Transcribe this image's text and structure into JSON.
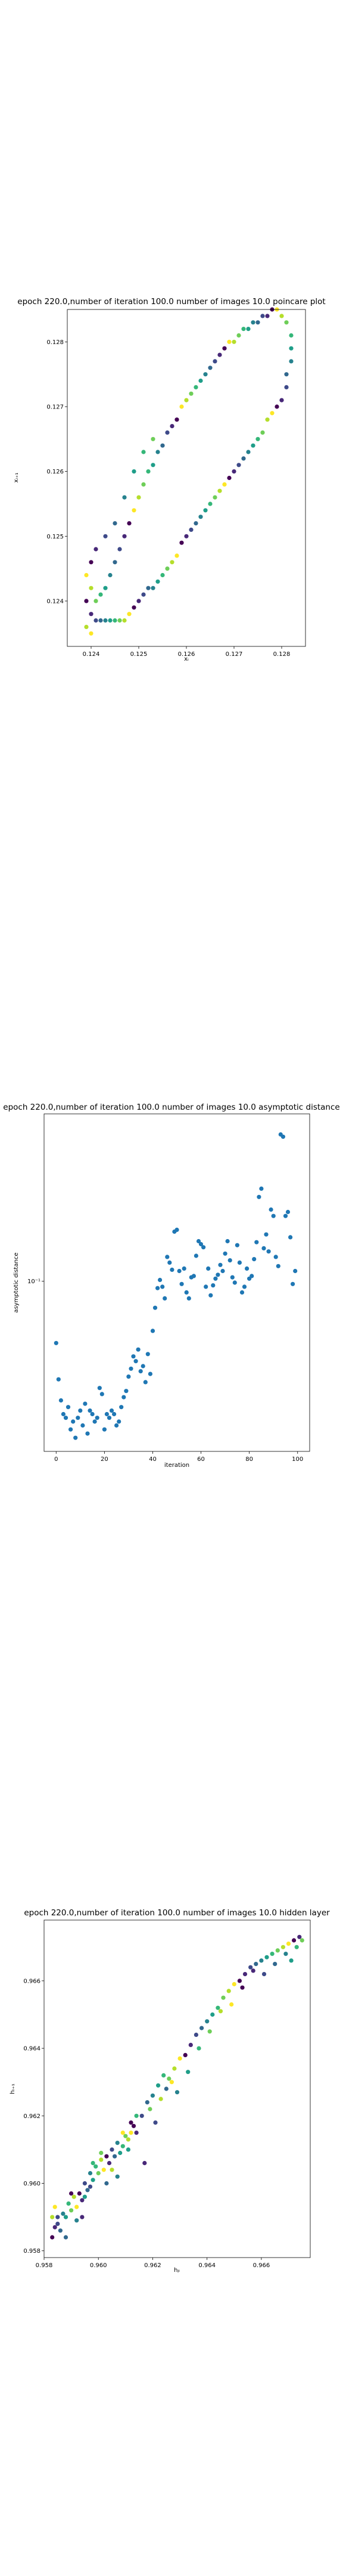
{
  "chart_data": [
    {
      "type": "scatter",
      "title": "epoch 220.0,number of iteration 100.0  number of images 10.0 poincare plot",
      "xlabel": "xᵢ",
      "ylabel": "xᵢ₊₁",
      "xlim": [
        0.1235,
        0.1285
      ],
      "ylim": [
        0.1233,
        0.1285
      ],
      "xticks": [
        0.124,
        0.125,
        0.126,
        0.127,
        0.128
      ],
      "xtick_labels": [
        "0.124",
        "0.125",
        "0.126",
        "0.127",
        "0.128"
      ],
      "yticks": [
        0.124,
        0.125,
        0.126,
        0.127,
        0.128
      ],
      "ytick_labels": [
        "0.124",
        "0.125",
        "0.126",
        "0.127",
        "0.128"
      ],
      "colormap": "viridis",
      "grid": false,
      "points": [
        [
          0.1239,
          0.124
        ],
        [
          0.124,
          0.1238
        ],
        [
          0.1241,
          0.1237
        ],
        [
          0.1242,
          0.1237
        ],
        [
          0.1243,
          0.1237
        ],
        [
          0.1244,
          0.1237
        ],
        [
          0.1245,
          0.1237
        ],
        [
          0.1246,
          0.1237
        ],
        [
          0.1247,
          0.1237
        ],
        [
          0.1248,
          0.1238
        ],
        [
          0.1249,
          0.1239
        ],
        [
          0.125,
          0.124
        ],
        [
          0.1251,
          0.1241
        ],
        [
          0.1252,
          0.1242
        ],
        [
          0.1253,
          0.1242
        ],
        [
          0.1254,
          0.1243
        ],
        [
          0.1255,
          0.1244
        ],
        [
          0.1256,
          0.1245
        ],
        [
          0.1257,
          0.1246
        ],
        [
          0.1258,
          0.1247
        ],
        [
          0.1259,
          0.1249
        ],
        [
          0.126,
          0.125
        ],
        [
          0.1261,
          0.1251
        ],
        [
          0.1262,
          0.1252
        ],
        [
          0.1263,
          0.1253
        ],
        [
          0.1264,
          0.1254
        ],
        [
          0.1265,
          0.1255
        ],
        [
          0.1266,
          0.1256
        ],
        [
          0.1267,
          0.1257
        ],
        [
          0.1268,
          0.1258
        ],
        [
          0.1269,
          0.1259
        ],
        [
          0.127,
          0.126
        ],
        [
          0.1271,
          0.1261
        ],
        [
          0.1272,
          0.1262
        ],
        [
          0.1273,
          0.1263
        ],
        [
          0.1274,
          0.1264
        ],
        [
          0.1275,
          0.1265
        ],
        [
          0.1276,
          0.1266
        ],
        [
          0.1277,
          0.1268
        ],
        [
          0.1278,
          0.1269
        ],
        [
          0.1279,
          0.127
        ],
        [
          0.128,
          0.1271
        ],
        [
          0.1281,
          0.1273
        ],
        [
          0.1281,
          0.1275
        ],
        [
          0.1282,
          0.1277
        ],
        [
          0.1282,
          0.1279
        ],
        [
          0.1282,
          0.1281
        ],
        [
          0.1281,
          0.1283
        ],
        [
          0.128,
          0.1284
        ],
        [
          0.1279,
          0.1285
        ],
        [
          0.1278,
          0.1285
        ],
        [
          0.1277,
          0.1284
        ],
        [
          0.1276,
          0.1284
        ],
        [
          0.1275,
          0.1283
        ],
        [
          0.1274,
          0.1283
        ],
        [
          0.1273,
          0.1282
        ],
        [
          0.1272,
          0.1282
        ],
        [
          0.1271,
          0.1281
        ],
        [
          0.127,
          0.128
        ],
        [
          0.1269,
          0.128
        ],
        [
          0.1268,
          0.1279
        ],
        [
          0.1267,
          0.1278
        ],
        [
          0.1266,
          0.1277
        ],
        [
          0.1265,
          0.1276
        ],
        [
          0.1264,
          0.1275
        ],
        [
          0.1263,
          0.1274
        ],
        [
          0.1262,
          0.1273
        ],
        [
          0.1261,
          0.1272
        ],
        [
          0.126,
          0.1271
        ],
        [
          0.1259,
          0.127
        ],
        [
          0.1258,
          0.1268
        ],
        [
          0.1257,
          0.1267
        ],
        [
          0.1256,
          0.1266
        ],
        [
          0.1255,
          0.1264
        ],
        [
          0.1254,
          0.1263
        ],
        [
          0.1253,
          0.1261
        ],
        [
          0.1252,
          0.126
        ],
        [
          0.1251,
          0.1258
        ],
        [
          0.125,
          0.1256
        ],
        [
          0.1249,
          0.1254
        ],
        [
          0.1248,
          0.1252
        ],
        [
          0.1247,
          0.125
        ],
        [
          0.1246,
          0.1248
        ],
        [
          0.1245,
          0.1246
        ],
        [
          0.1244,
          0.1244
        ],
        [
          0.1243,
          0.1242
        ],
        [
          0.1242,
          0.1241
        ],
        [
          0.1241,
          0.124
        ],
        [
          0.124,
          0.1242
        ],
        [
          0.1239,
          0.1244
        ],
        [
          0.124,
          0.1246
        ],
        [
          0.1241,
          0.1248
        ],
        [
          0.1243,
          0.125
        ],
        [
          0.1245,
          0.1252
        ],
        [
          0.1247,
          0.1256
        ],
        [
          0.1249,
          0.126
        ],
        [
          0.1251,
          0.1263
        ],
        [
          0.1253,
          0.1265
        ],
        [
          0.1239,
          0.1236
        ],
        [
          0.124,
          0.1235
        ]
      ]
    },
    {
      "type": "scatter",
      "title": "epoch 220.0,number of iteration 100.0  number of images 10.0 asymptotic distance",
      "xlabel": "iteration",
      "ylabel": "asymptotic distance",
      "yscale": "log",
      "xlim": [
        -5,
        105
      ],
      "ylim": [
        0.028,
        0.35
      ],
      "xticks": [
        0,
        20,
        40,
        60,
        80,
        100
      ],
      "xtick_labels": [
        "0",
        "20",
        "40",
        "60",
        "80",
        "100"
      ],
      "yticks": [
        0.1
      ],
      "ytick_labels": [
        "10⁻¹"
      ],
      "color": "#1f77b4",
      "x": [
        0,
        1,
        2,
        3,
        4,
        5,
        6,
        7,
        8,
        9,
        10,
        11,
        12,
        13,
        14,
        15,
        16,
        17,
        18,
        19,
        20,
        21,
        22,
        23,
        24,
        25,
        26,
        27,
        28,
        29,
        30,
        31,
        32,
        33,
        34,
        35,
        36,
        37,
        38,
        39,
        40,
        41,
        42,
        43,
        44,
        45,
        46,
        47,
        48,
        49,
        50,
        51,
        52,
        53,
        54,
        55,
        56,
        57,
        58,
        59,
        60,
        61,
        62,
        63,
        64,
        65,
        66,
        67,
        68,
        69,
        70,
        71,
        72,
        73,
        74,
        75,
        76,
        77,
        78,
        79,
        80,
        81,
        82,
        83,
        84,
        85,
        86,
        87,
        88,
        89,
        90,
        91,
        92,
        93,
        94,
        95,
        96,
        97,
        98,
        99
      ],
      "y": [
        0.063,
        0.048,
        0.041,
        0.037,
        0.036,
        0.039,
        0.033,
        0.035,
        0.031,
        0.036,
        0.038,
        0.034,
        0.04,
        0.032,
        0.038,
        0.037,
        0.035,
        0.036,
        0.045,
        0.043,
        0.033,
        0.037,
        0.036,
        0.038,
        0.037,
        0.034,
        0.035,
        0.039,
        0.042,
        0.044,
        0.049,
        0.052,
        0.057,
        0.055,
        0.06,
        0.051,
        0.053,
        0.047,
        0.058,
        0.05,
        0.069,
        0.082,
        0.095,
        0.101,
        0.096,
        0.088,
        0.12,
        0.115,
        0.109,
        0.145,
        0.147,
        0.108,
        0.098,
        0.11,
        0.092,
        0.088,
        0.103,
        0.104,
        0.121,
        0.135,
        0.132,
        0.129,
        0.096,
        0.11,
        0.09,
        0.097,
        0.102,
        0.105,
        0.113,
        0.108,
        0.123,
        0.135,
        0.117,
        0.103,
        0.099,
        0.131,
        0.115,
        0.092,
        0.096,
        0.11,
        0.102,
        0.104,
        0.118,
        0.134,
        0.188,
        0.2,
        0.128,
        0.142,
        0.125,
        0.171,
        0.163,
        0.12,
        0.112,
        0.3,
        0.295,
        0.163,
        0.168,
        0.139,
        0.098,
        0.108
      ]
    },
    {
      "type": "scatter",
      "title": "epoch 220.0,number of iteration 100.0  number of images 10.0 hidden layer",
      "xlabel": "hⱼᵢ",
      "ylabel": "hᵢ₊₁",
      "xlim": [
        0.958,
        0.9678
      ],
      "ylim": [
        0.9578,
        0.9678
      ],
      "xticks": [
        0.958,
        0.96,
        0.962,
        0.964,
        0.966
      ],
      "xtick_labels": [
        "0.958",
        "0.960",
        "0.962",
        "0.964",
        "0.966"
      ],
      "yticks": [
        0.958,
        0.96,
        0.962,
        0.964,
        0.966
      ],
      "ytick_labels": [
        "0.958",
        "0.960",
        "0.962",
        "0.964",
        "0.966"
      ],
      "colormap": "viridis",
      "grid": false,
      "points": [
        [
          0.9583,
          0.9584
        ],
        [
          0.9584,
          0.9587
        ],
        [
          0.9585,
          0.9588
        ],
        [
          0.9586,
          0.9586
        ],
        [
          0.9587,
          0.9591
        ],
        [
          0.9588,
          0.959
        ],
        [
          0.9589,
          0.9594
        ],
        [
          0.959,
          0.9592
        ],
        [
          0.9591,
          0.9596
        ],
        [
          0.9592,
          0.9593
        ],
        [
          0.9593,
          0.9597
        ],
        [
          0.9594,
          0.9595
        ],
        [
          0.9595,
          0.96
        ],
        [
          0.9596,
          0.9598
        ],
        [
          0.9597,
          0.9603
        ],
        [
          0.9598,
          0.9601
        ],
        [
          0.9599,
          0.9605
        ],
        [
          0.96,
          0.9603
        ],
        [
          0.9601,
          0.9607
        ],
        [
          0.9602,
          0.9604
        ],
        [
          0.9603,
          0.9608
        ],
        [
          0.9604,
          0.9606
        ],
        [
          0.9605,
          0.961
        ],
        [
          0.9606,
          0.9608
        ],
        [
          0.9607,
          0.9612
        ],
        [
          0.9608,
          0.9609
        ],
        [
          0.9609,
          0.9611
        ],
        [
          0.961,
          0.9614
        ],
        [
          0.9611,
          0.9613
        ],
        [
          0.9612,
          0.9615
        ],
        [
          0.9613,
          0.9617
        ],
        [
          0.9614,
          0.9615
        ],
        [
          0.9616,
          0.962
        ],
        [
          0.9618,
          0.9624
        ],
        [
          0.962,
          0.9626
        ],
        [
          0.9622,
          0.9629
        ],
        [
          0.9624,
          0.9632
        ],
        [
          0.9626,
          0.9631
        ],
        [
          0.9628,
          0.9634
        ],
        [
          0.963,
          0.9637
        ],
        [
          0.9632,
          0.9638
        ],
        [
          0.9634,
          0.9641
        ],
        [
          0.9636,
          0.9644
        ],
        [
          0.9638,
          0.9646
        ],
        [
          0.964,
          0.9648
        ],
        [
          0.9642,
          0.965
        ],
        [
          0.9644,
          0.9652
        ],
        [
          0.9646,
          0.9655
        ],
        [
          0.9648,
          0.9657
        ],
        [
          0.965,
          0.9659
        ],
        [
          0.9652,
          0.966
        ],
        [
          0.9654,
          0.9662
        ],
        [
          0.9656,
          0.9664
        ],
        [
          0.9658,
          0.9665
        ],
        [
          0.966,
          0.9666
        ],
        [
          0.9662,
          0.9667
        ],
        [
          0.9664,
          0.9668
        ],
        [
          0.9666,
          0.9669
        ],
        [
          0.9668,
          0.967
        ],
        [
          0.967,
          0.9671
        ],
        [
          0.9672,
          0.9672
        ],
        [
          0.9674,
          0.9673
        ],
        [
          0.9585,
          0.959
        ],
        [
          0.9588,
          0.9584
        ],
        [
          0.9592,
          0.9589
        ],
        [
          0.9595,
          0.9596
        ],
        [
          0.9598,
          0.9606
        ],
        [
          0.9601,
          0.9609
        ],
        [
          0.9605,
          0.9604
        ],
        [
          0.9609,
          0.9615
        ],
        [
          0.9612,
          0.9618
        ],
        [
          0.9617,
          0.9606
        ],
        [
          0.9621,
          0.9618
        ],
        [
          0.9625,
          0.9628
        ],
        [
          0.9629,
          0.9627
        ],
        [
          0.9633,
          0.9633
        ],
        [
          0.9637,
          0.964
        ],
        [
          0.9641,
          0.9645
        ],
        [
          0.9645,
          0.9651
        ],
        [
          0.9649,
          0.9653
        ],
        [
          0.9653,
          0.9658
        ],
        [
          0.9657,
          0.9663
        ],
        [
          0.9661,
          0.9662
        ],
        [
          0.9665,
          0.9665
        ],
        [
          0.9669,
          0.9668
        ],
        [
          0.9671,
          0.9666
        ],
        [
          0.9673,
          0.967
        ],
        [
          0.9675,
          0.9672
        ],
        [
          0.9583,
          0.959
        ],
        [
          0.9584,
          0.9593
        ],
        [
          0.959,
          0.9597
        ],
        [
          0.9594,
          0.959
        ],
        [
          0.9597,
          0.9599
        ],
        [
          0.9603,
          0.96
        ],
        [
          0.9607,
          0.9602
        ],
        [
          0.9611,
          0.961
        ],
        [
          0.9614,
          0.962
        ],
        [
          0.9619,
          0.9622
        ],
        [
          0.9623,
          0.9625
        ],
        [
          0.9627,
          0.963
        ]
      ]
    }
  ]
}
